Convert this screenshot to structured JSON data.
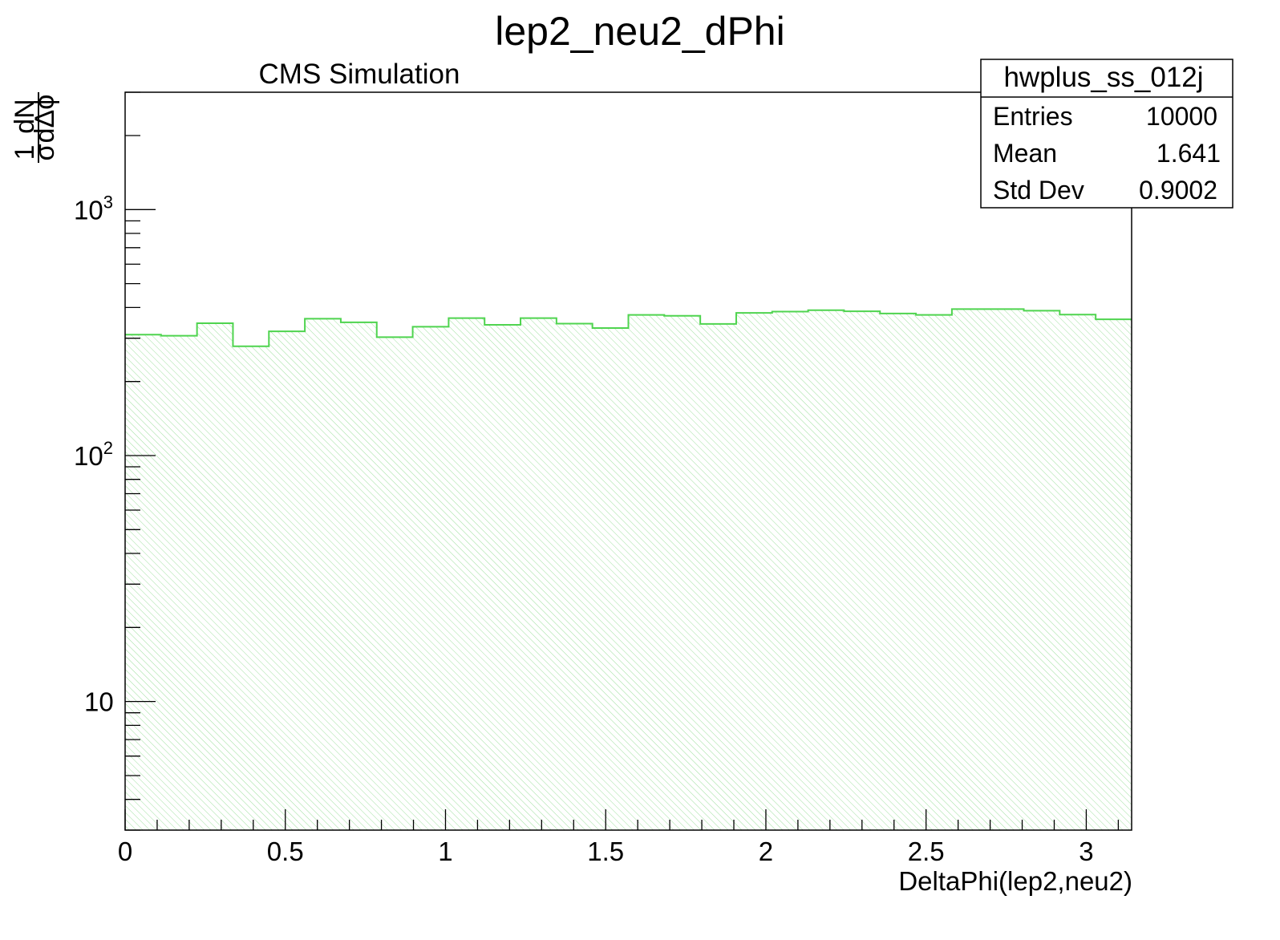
{
  "title": "lep2_neu2_dPhi",
  "label": "CMS Simulation",
  "stats": {
    "name": "hwplus_ss_012j",
    "rows": [
      {
        "label": "Entries",
        "value": "10000"
      },
      {
        "label": "Mean",
        "value": "1.641"
      },
      {
        "label": "Std Dev",
        "value": "0.9002"
      }
    ]
  },
  "chart_data": {
    "type": "bar",
    "style": "step-histogram",
    "title": "lep2_neu2_dPhi",
    "xlabel": "DeltaPhi(lep2,neu2)",
    "ylabel_numerator": "1",
    "ylabel_sigma": "σ",
    "ylabel_dN": "dN",
    "ylabel_dphi": "dΔϕ",
    "xlim": [
      0,
      3.1416
    ],
    "ylim": [
      3,
      3000
    ],
    "yscale": "log",
    "grid": false,
    "x_ticks": [
      {
        "value": 0,
        "label": "0"
      },
      {
        "value": 0.5,
        "label": "0.5"
      },
      {
        "value": 1,
        "label": "1"
      },
      {
        "value": 1.5,
        "label": "1.5"
      },
      {
        "value": 2,
        "label": "2"
      },
      {
        "value": 2.5,
        "label": "2.5"
      },
      {
        "value": 3,
        "label": "3"
      }
    ],
    "y_ticks": [
      {
        "value": 10,
        "base": "10",
        "exp": ""
      },
      {
        "value": 100,
        "base": "10",
        "exp": "2"
      },
      {
        "value": 1000,
        "base": "10",
        "exp": "3"
      }
    ],
    "line_color": "#4fd44f",
    "fill_color": "#bfeabf",
    "bin_width": 0.1122,
    "series": [
      {
        "values": [
          310,
          307,
          345,
          278,
          320,
          360,
          348,
          303,
          334,
          362,
          340,
          362,
          344,
          330,
          373,
          370,
          343,
          380,
          385,
          390,
          386,
          378,
          373,
          394,
          394,
          388,
          374,
          358
        ]
      }
    ]
  }
}
